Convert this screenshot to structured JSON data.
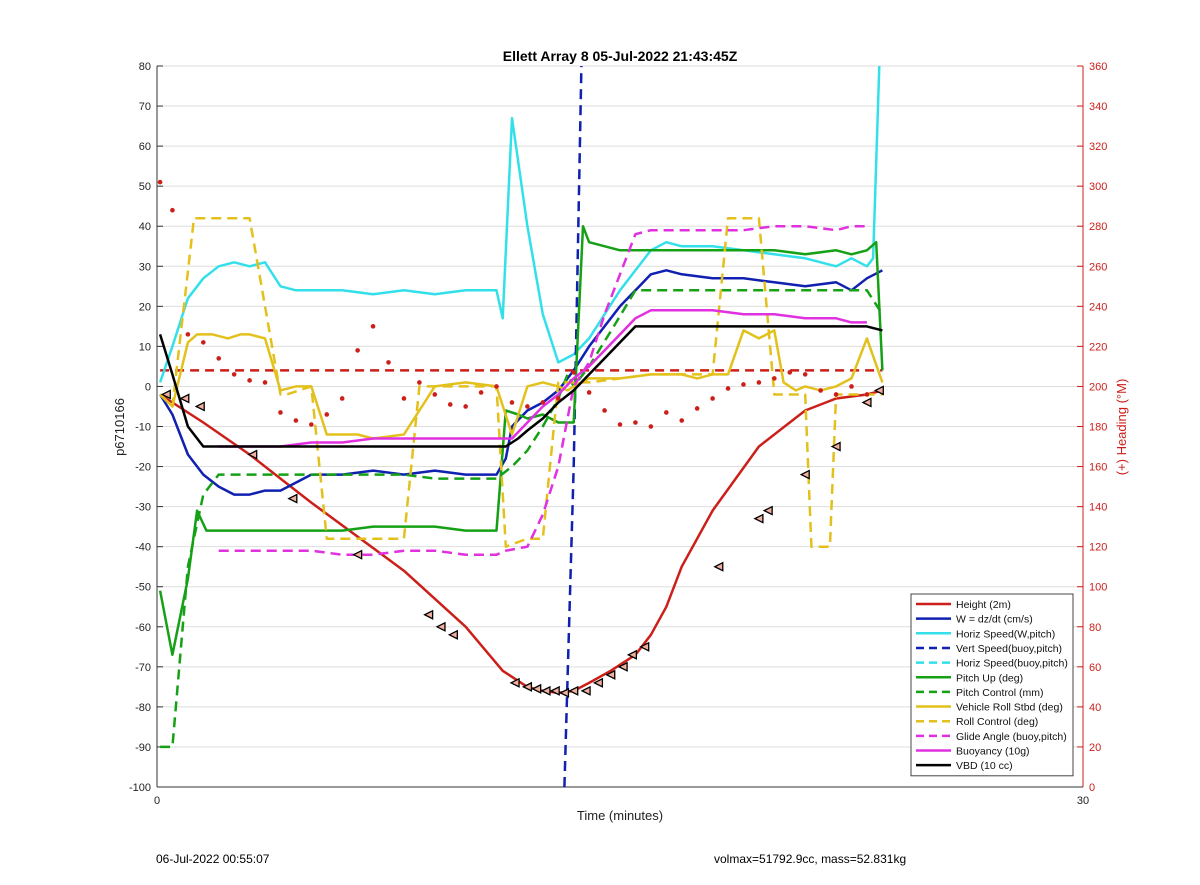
{
  "footer": {
    "timestamp": "06-Jul-2022 00:55:07",
    "summary": "volmax=51792.9cc, mass=52.831kg"
  },
  "chart_data": {
    "type": "line",
    "title": "Ellett Array 8 05-Jul-2022 21:43:45Z",
    "xlabel": "Time (minutes)",
    "ylabel": "p6710166",
    "y2label": "(+) Heading (°M)",
    "xlim": [
      0,
      30
    ],
    "ylim": [
      -100,
      80
    ],
    "y2lim": [
      0,
      360
    ],
    "x_ticks": [
      "0",
      "30"
    ],
    "y_ticks": [
      "80",
      "70",
      "60",
      "50",
      "40",
      "30",
      "20",
      "10",
      "0",
      "-10",
      "-20",
      "-30",
      "-40",
      "-50",
      "-60",
      "-70",
      "-80",
      "-90",
      "-100"
    ],
    "y2_ticks": [
      "360",
      "340",
      "320",
      "300",
      "280",
      "260",
      "240",
      "220",
      "200",
      "180",
      "160",
      "140",
      "120",
      "100",
      "80",
      "60",
      "40",
      "20",
      "0"
    ],
    "grid": true,
    "legend_position": "bottom-right",
    "colors": {
      "red": "#cc1f1a",
      "blue": "#1020b0",
      "cyan": "#33e0ea",
      "green": "#16a016",
      "yellow": "#e3c11d",
      "magenta": "#e030e0",
      "black": "#000000",
      "axis2": "#cc1f1a"
    },
    "series": [
      {
        "name": "Height (2m)",
        "color": "#cc1f1a",
        "dash": false,
        "x": [
          0.1,
          0.5,
          1.5,
          3,
          5,
          8,
          10,
          11.2,
          12,
          12.5,
          13,
          13.5,
          14,
          14.7,
          15.5,
          16,
          16.5,
          17,
          18,
          19.5,
          21,
          22,
          23,
          23.5
        ],
        "y": [
          -2,
          -4,
          -9,
          -17,
          -29,
          -46,
          -60,
          -71,
          -75,
          -76,
          -76.5,
          -76,
          -74,
          -71,
          -67,
          -62,
          -55,
          -45,
          -31,
          -15,
          -6,
          -3,
          -2,
          -1
        ]
      },
      {
        "name": "W = dz/dt (cm/s)",
        "color": "#1020b0",
        "dash": false,
        "x": [
          0.1,
          0.5,
          1,
          1.5,
          2,
          2.5,
          3,
          3.5,
          4,
          4.5,
          5,
          6,
          7,
          8,
          9,
          10,
          11,
          11.3,
          11.5,
          12,
          12.5,
          13,
          13.5,
          14,
          15,
          16,
          16.5,
          17,
          18,
          19,
          20,
          21,
          22,
          22.5,
          23,
          23.5
        ],
        "y": [
          -2,
          -7,
          -17,
          -22,
          -25,
          -27,
          -27,
          -26,
          -26,
          -24,
          -22,
          -22,
          -21,
          -22,
          -21,
          -22,
          -22,
          -18,
          -10,
          -6,
          -4,
          -1,
          4,
          10,
          20,
          28,
          29,
          28,
          27,
          27,
          26,
          25,
          26,
          24,
          27,
          29
        ]
      },
      {
        "name": "Horiz Speed(W,pitch)",
        "color": "#33e0ea",
        "dash": false,
        "x": [
          0.1,
          0.5,
          1,
          1.5,
          2,
          2.5,
          3,
          3.5,
          4,
          4.5,
          5,
          6,
          7,
          8,
          9,
          10,
          11,
          11.2,
          11.5,
          12,
          12.5,
          13,
          13.5,
          14,
          15,
          16,
          16.5,
          17,
          18,
          19,
          20,
          21,
          22,
          22.5,
          23,
          23.2,
          23.4
        ],
        "y": [
          1,
          10,
          22,
          27,
          30,
          31,
          30,
          31,
          25,
          24,
          24,
          24,
          23,
          24,
          23,
          24,
          24,
          17,
          67,
          40,
          18,
          6,
          8,
          12,
          24,
          34,
          36,
          35,
          35,
          34,
          33,
          32,
          30,
          32,
          30,
          32,
          80
        ]
      },
      {
        "name": "Vert Speed(buoy,pitch)",
        "color": "#1020b0",
        "dash": true,
        "x": [
          13.2,
          13.5,
          13.6,
          13.75
        ],
        "y": [
          -100,
          -20,
          20,
          80
        ]
      },
      {
        "name": "Horiz Speed(buoy,pitch)",
        "color": "#33e0ea",
        "dash": true,
        "x": [],
        "y": []
      },
      {
        "name": "Pitch Up (deg)",
        "color": "#16a016",
        "dash": false,
        "x": [
          0.1,
          0.5,
          1,
          1.3,
          1.6,
          2,
          3,
          4,
          5,
          6,
          7,
          8,
          9,
          10,
          11,
          11.3,
          11.7,
          12,
          12.5,
          13,
          13.5,
          13.8,
          14,
          15,
          16,
          17,
          18,
          19,
          20,
          21,
          22,
          22.5,
          23,
          23.3,
          23.5
        ],
        "y": [
          -51,
          -67,
          -48,
          -31,
          -36,
          -36,
          -36,
          -36,
          -36,
          -36,
          -35,
          -35,
          -35,
          -36,
          -36,
          -6,
          -7,
          -8,
          -7,
          -9,
          -9,
          40,
          36,
          34,
          34,
          34,
          34,
          34,
          34,
          33,
          34,
          33,
          34,
          36,
          4
        ]
      },
      {
        "name": "Pitch Control (mm)",
        "color": "#16a016",
        "dash": true,
        "x": [
          0.1,
          0.5,
          1,
          1.5,
          2,
          3,
          4,
          5,
          6,
          7,
          8,
          9,
          10,
          11,
          11.5,
          12,
          12.5,
          13,
          13.3,
          13.5,
          14,
          14.8,
          15.5,
          16,
          23,
          23.5
        ],
        "y": [
          -90,
          -90,
          -45,
          -27,
          -22,
          -22,
          -22,
          -22,
          -22,
          -22,
          -22,
          -23,
          -23,
          -23,
          -20,
          -16,
          -10,
          -3,
          3,
          0,
          5,
          15,
          24,
          24,
          24,
          18
        ]
      },
      {
        "name": "Vehicle Roll Stbd (deg)",
        "color": "#e3c11d",
        "dash": false,
        "x": [
          0.1,
          0.5,
          1,
          1.3,
          1.8,
          2.3,
          2.7,
          3,
          3.5,
          4,
          4.5,
          5,
          5.5,
          6,
          6.5,
          7,
          8,
          9,
          10,
          11,
          11.5,
          12,
          12.5,
          13,
          13.3,
          13.5,
          14,
          15,
          16,
          17,
          17.5,
          18,
          18.5,
          19,
          19.5,
          20,
          20.3,
          20.7,
          21,
          21.5,
          22,
          22.5,
          23,
          23.5
        ],
        "y": [
          -2,
          -5,
          11,
          13,
          13,
          12,
          13,
          13,
          12,
          -1,
          0,
          0,
          -12,
          -12,
          -12,
          -13,
          -12,
          0,
          1,
          0,
          -12,
          0,
          1,
          0,
          -1,
          0,
          2,
          2,
          3,
          3,
          2,
          3,
          3,
          14,
          12,
          14,
          1,
          -1,
          0,
          -1,
          0,
          2,
          12,
          1
        ]
      },
      {
        "name": "Roll Control (deg)",
        "color": "#e3c11d",
        "dash": true,
        "x": [
          0.1,
          0.5,
          1.2,
          1.5,
          2,
          2.5,
          3,
          4,
          4.2,
          5,
          5.5,
          6,
          6.5,
          7,
          8,
          8.5,
          9,
          10,
          11,
          11.3,
          12,
          12.5,
          13,
          14,
          15,
          16,
          17,
          18,
          18.5,
          19,
          19.5,
          20,
          20.5,
          21,
          21.2,
          21.5,
          21.8,
          22,
          22.5,
          23,
          23.5
        ],
        "y": [
          -2,
          -5,
          42,
          42,
          42,
          42,
          42,
          -2,
          -2,
          0,
          -38,
          -38,
          -38,
          -38,
          -38,
          0,
          0,
          0,
          0,
          -40,
          -38,
          -38,
          1,
          1,
          2,
          3,
          3,
          3,
          42,
          42,
          42,
          -2,
          -2,
          -2,
          -40,
          -40,
          -40,
          -2,
          -2,
          -2,
          -2
        ]
      },
      {
        "name": "Glide Angle (buoy,pitch)",
        "color": "#e030e0",
        "dash": true,
        "x": [
          2,
          3,
          4,
          5,
          6,
          7,
          8,
          9,
          10,
          11,
          11.3,
          12,
          12.5,
          13,
          13.5,
          14,
          14.5,
          15,
          15.5,
          16,
          17,
          18,
          19,
          20,
          21,
          22,
          22.5,
          23
        ],
        "y": [
          -41,
          -41,
          -41,
          -41,
          -42,
          -42,
          -41,
          -41,
          -42,
          -42,
          -41,
          -40,
          -32,
          -20,
          0,
          6,
          18,
          28,
          38,
          39,
          39,
          39,
          39,
          40,
          40,
          39,
          40,
          40
        ]
      },
      {
        "name": "Buoyancy (10g)",
        "color": "#e030e0",
        "dash": false,
        "x": [
          2,
          3,
          4,
          5,
          6,
          7,
          8,
          9,
          10,
          11,
          11.5,
          12,
          12.5,
          13,
          13.5,
          14,
          14.5,
          15,
          15.5,
          16,
          17,
          18,
          19,
          20,
          21,
          22,
          22.5,
          23
        ],
        "y": [
          -15,
          -15,
          -15,
          -14,
          -14,
          -13,
          -13,
          -13,
          -13,
          -13,
          -13,
          -9,
          -5,
          -2,
          2,
          5,
          9,
          13,
          17,
          19,
          19,
          19,
          18,
          18,
          17,
          17,
          16,
          16
        ]
      },
      {
        "name": "VBD (10 cc)",
        "color": "#000000",
        "dash": false,
        "x": [
          0.1,
          0.5,
          1,
          1.5,
          2,
          3,
          4,
          5,
          6,
          7,
          8,
          9,
          10,
          11,
          11.3,
          11.7,
          12,
          12.5,
          13,
          13.5,
          14,
          14.5,
          15,
          15.5,
          16,
          17,
          18,
          19,
          20,
          21,
          22,
          23,
          23.5
        ],
        "y": [
          13,
          3,
          -10,
          -15,
          -15,
          -15,
          -15,
          -15,
          -15,
          -15,
          -15,
          -15,
          -15,
          -15,
          -15,
          -13,
          -11,
          -8,
          -4,
          -1,
          3,
          7,
          11,
          15,
          15,
          15,
          15,
          15,
          15,
          15,
          15,
          15,
          14
        ]
      }
    ],
    "heading_points": {
      "name": "Heading",
      "axis": "right",
      "x": [
        0.1,
        0.5,
        1,
        1.5,
        2,
        2.5,
        3,
        3.5,
        4,
        4.5,
        5,
        5.5,
        6,
        6.5,
        7,
        7.5,
        8,
        8.5,
        9,
        9.5,
        10,
        10.5,
        11,
        11.5,
        12,
        12.5,
        13,
        13.5,
        14,
        14.5,
        15,
        15.5,
        16,
        16.5,
        17,
        17.5,
        18,
        18.5,
        19,
        19.5,
        20,
        20.5,
        21,
        21.5,
        22,
        22.5,
        23
      ],
      "y": [
        302,
        288,
        226,
        222,
        214,
        206,
        203,
        202,
        187,
        183,
        181,
        186,
        194,
        218,
        230,
        212,
        194,
        202,
        196,
        191,
        190,
        197,
        200,
        192,
        190,
        192,
        194,
        207,
        197,
        188,
        181,
        182,
        180,
        187,
        183,
        189,
        194,
        199,
        201,
        202,
        204,
        207,
        206,
        198,
        196,
        200,
        196
      ]
    },
    "heading_reference": {
      "axis": "right",
      "y": 208
    },
    "direction_markers": [
      {
        "x": 0.3,
        "y": -2
      },
      {
        "x": 0.9,
        "y": -3
      },
      {
        "x": 1.4,
        "y": -5
      },
      {
        "x": 3.1,
        "y": -17
      },
      {
        "x": 4.4,
        "y": -28
      },
      {
        "x": 6.5,
        "y": -42
      },
      {
        "x": 8.8,
        "y": -57
      },
      {
        "x": 9.2,
        "y": -60
      },
      {
        "x": 9.6,
        "y": -62
      },
      {
        "x": 11.6,
        "y": -74
      },
      {
        "x": 12.0,
        "y": -75
      },
      {
        "x": 12.3,
        "y": -75.5
      },
      {
        "x": 12.6,
        "y": -76
      },
      {
        "x": 12.9,
        "y": -76
      },
      {
        "x": 13.2,
        "y": -76.5
      },
      {
        "x": 13.5,
        "y": -76
      },
      {
        "x": 13.9,
        "y": -76
      },
      {
        "x": 14.3,
        "y": -74
      },
      {
        "x": 14.7,
        "y": -72
      },
      {
        "x": 15.1,
        "y": -70
      },
      {
        "x": 15.4,
        "y": -67
      },
      {
        "x": 15.8,
        "y": -65
      },
      {
        "x": 18.2,
        "y": -45
      },
      {
        "x": 19.5,
        "y": -33
      },
      {
        "x": 19.8,
        "y": -31
      },
      {
        "x": 21.0,
        "y": -22
      },
      {
        "x": 22.0,
        "y": -15
      },
      {
        "x": 23.0,
        "y": -4
      },
      {
        "x": 23.4,
        "y": -1
      }
    ]
  }
}
